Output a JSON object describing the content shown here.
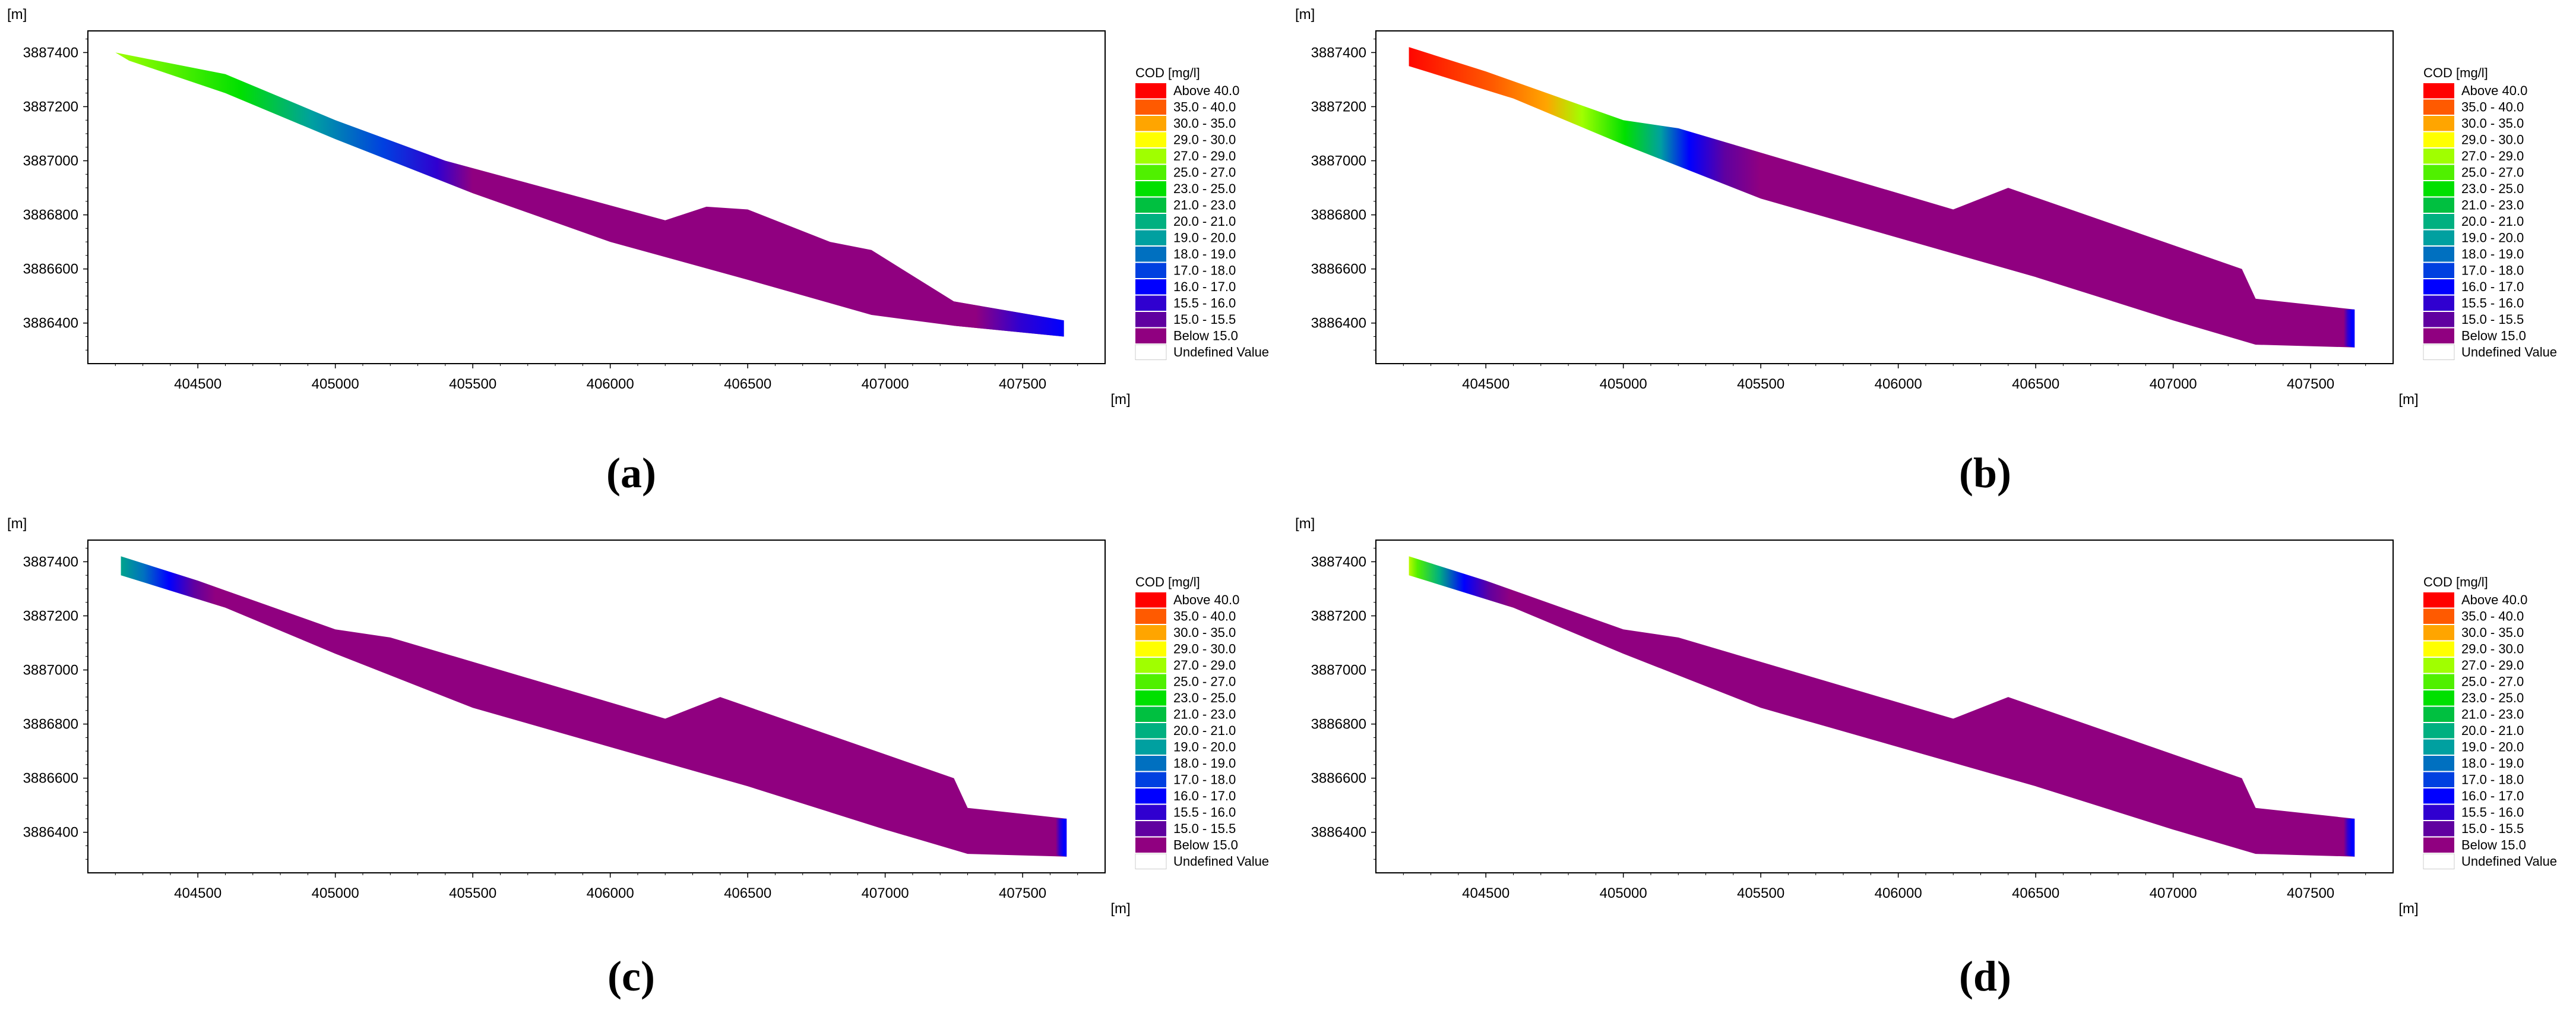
{
  "panels": [
    {
      "id": "a",
      "caption": "(a)",
      "variant": "a"
    },
    {
      "id": "b",
      "caption": "(b)",
      "variant": "b"
    },
    {
      "id": "c",
      "caption": "(c)",
      "variant": "c"
    },
    {
      "id": "d",
      "caption": "(d)",
      "variant": "d"
    }
  ],
  "axis_unit": "[m]",
  "x_ticks": [
    404500,
    405000,
    405500,
    406000,
    406500,
    407000,
    407500
  ],
  "y_ticks": [
    3886400,
    3886600,
    3886800,
    3887000,
    3887200,
    3887400
  ],
  "xlim": [
    404100,
    407800
  ],
  "ylim": [
    3886250,
    3887480
  ],
  "legend": {
    "title": "COD [mg/l]",
    "entries": [
      {
        "label": "Above 40.0",
        "color": "#ff0000"
      },
      {
        "label": "35.0 - 40.0",
        "color": "#ff5a00"
      },
      {
        "label": "30.0 - 35.0",
        "color": "#ffa500"
      },
      {
        "label": "29.0 - 30.0",
        "color": "#ffff00"
      },
      {
        "label": "27.0 - 29.0",
        "color": "#a0ff00"
      },
      {
        "label": "25.0 - 27.0",
        "color": "#50f000"
      },
      {
        "label": "23.0 - 25.0",
        "color": "#00e000"
      },
      {
        "label": "21.0 - 23.0",
        "color": "#00c040"
      },
      {
        "label": "20.0 - 21.0",
        "color": "#00b080"
      },
      {
        "label": "19.0 - 20.0",
        "color": "#00a0a0"
      },
      {
        "label": "18.0 - 19.0",
        "color": "#0070c0"
      },
      {
        "label": "17.0 - 18.0",
        "color": "#0040e0"
      },
      {
        "label": "16.0 - 17.0",
        "color": "#0000ff"
      },
      {
        "label": "15.5 - 16.0",
        "color": "#3000d0"
      },
      {
        "label": "15.0 - 15.5",
        "color": "#6000a0"
      },
      {
        "label": "Below 15.0",
        "color": "#900080"
      },
      {
        "label": "Undefined Value",
        "color": "#ffffff"
      }
    ]
  },
  "chart_data": [
    {
      "type": "heatmap",
      "title": "",
      "xlabel": "[m]",
      "ylabel": "[m]",
      "xlim": [
        404100,
        407800
      ],
      "ylim": [
        3886250,
        3887480
      ],
      "x_ticks": [
        404500,
        405000,
        405500,
        406000,
        406500,
        407000,
        407500
      ],
      "y_ticks": [
        3886400,
        3886600,
        3886800,
        3887000,
        3887200,
        3887400
      ],
      "legend_title": "COD [mg/l]"
    },
    {
      "type": "heatmap",
      "title": "",
      "xlabel": "[m]",
      "ylabel": "[m]",
      "xlim": [
        404100,
        407800
      ],
      "ylim": [
        3886250,
        3887480
      ],
      "x_ticks": [
        404500,
        405000,
        405500,
        406000,
        406500,
        407000,
        407500
      ],
      "y_ticks": [
        3886400,
        3886600,
        3886800,
        3887000,
        3887200,
        3887400
      ],
      "legend_title": "COD [mg/l]"
    },
    {
      "type": "heatmap",
      "title": "",
      "xlabel": "[m]",
      "ylabel": "[m]",
      "xlim": [
        404100,
        407800
      ],
      "ylim": [
        3886250,
        3887480
      ],
      "x_ticks": [
        404500,
        405000,
        405500,
        406000,
        406500,
        407000,
        407500
      ],
      "y_ticks": [
        3886400,
        3886600,
        3886800,
        3887000,
        3887200,
        3887400
      ],
      "legend_title": "COD [mg/l]"
    },
    {
      "type": "heatmap",
      "title": "",
      "xlabel": "[m]",
      "ylabel": "[m]",
      "xlim": [
        404100,
        407800
      ],
      "ylim": [
        3886250,
        3887480
      ],
      "x_ticks": [
        404500,
        405000,
        405500,
        406000,
        406500,
        407000,
        407500
      ],
      "y_ticks": [
        3886400,
        3886600,
        3886800,
        3887000,
        3887200,
        3887400
      ],
      "legend_title": "COD [mg/l]"
    }
  ]
}
